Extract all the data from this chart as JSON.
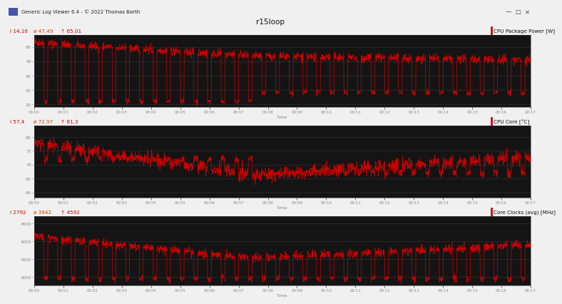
{
  "title": "r15loop",
  "window_title": "Generic Log Viewer 6.4 - © 2022 Thomas Barth",
  "bg_window": "#f0f0f0",
  "bg_titlebar": "#e8e8e8",
  "bg_header": "#f5f5f5",
  "bg_plot": "#141414",
  "bg_separator": "#444444",
  "line_color": "#cc0000",
  "grid_color": "#2a2a2a",
  "tick_color": "#888888",
  "label_color": "#333333",
  "panels": [
    {
      "label": "CPU Package Power [W]",
      "stat_i": "i 14,16",
      "stat_avg": "ø 47,49",
      "stat_max": "↑ 65,01",
      "ylim": [
        18,
        68
      ],
      "yticks": [
        20,
        30,
        40,
        50,
        60
      ],
      "high_early": 63,
      "high_late": 51,
      "low_early": 22,
      "low_late": 28,
      "transition": 7.5,
      "noise_high": 1.5,
      "noise_low": 1.0
    },
    {
      "label": "CPU Core [°C]",
      "stat_i": "i 57,4",
      "stat_avg": "ø 72,97",
      "stat_max": "↑ 81,3",
      "ylim": [
        58,
        84
      ],
      "yticks": [
        60,
        65,
        70,
        75,
        80
      ],
      "high_early": 78,
      "high_late": 73,
      "low_early": 72,
      "low_late": 67,
      "transition": 7.5,
      "noise_high": 1.2,
      "noise_low": 0.8
    },
    {
      "label": "Core Clocks (avg) [MHz]",
      "stat_i": "i 2792",
      "stat_avg": "ø 3942",
      "stat_max": "↑ 4592",
      "ylim": [
        2750,
        4700
      ],
      "yticks": [
        3000,
        3500,
        4000,
        4500
      ],
      "high_early": 4150,
      "high_late": 3900,
      "low_early": 2950,
      "low_late": 2950,
      "transition": 7.5,
      "noise_high": 60,
      "noise_low": 50
    }
  ],
  "xtick_labels": [
    "00:00",
    "00:01",
    "00:02",
    "00:03",
    "00:04",
    "00:05",
    "00:06",
    "00:07",
    "00:08",
    "00:09",
    "00:10",
    "00:11",
    "00:12",
    "00:13",
    "00:14",
    "00:15",
    "00:16",
    "00:17"
  ],
  "n_points": 2040,
  "duration": 17,
  "cycle_seconds": 28
}
